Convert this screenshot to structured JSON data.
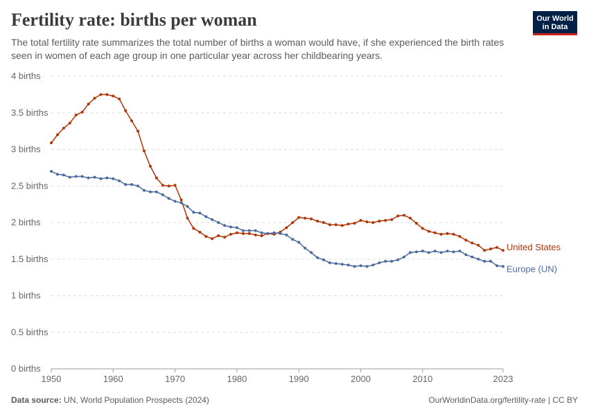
{
  "header": {
    "title": "Fertility rate: births per woman",
    "subtitle": "The total fertility rate summarizes the total number of births a woman would have, if she experienced the birth rates seen in women of each age group in one particular year across her childbearing years."
  },
  "logo": {
    "line1": "Our World",
    "line2": "in Data",
    "bg_color": "#002147",
    "accent_color": "#ce261e"
  },
  "footer": {
    "source_label": "Data source:",
    "source_text": "UN, World Population Prospects (2024)",
    "url_license": "OurWorldinData.org/fertility-rate | CC BY"
  },
  "chart_data": {
    "type": "line",
    "title": "Fertility rate: births per woman",
    "xlabel": "",
    "ylabel": "",
    "xlim": [
      1950,
      2023
    ],
    "ylim": [
      0,
      4
    ],
    "grid": "horizontal dashed",
    "x_ticks": [
      "1950",
      "1960",
      "1970",
      "1980",
      "1990",
      "2000",
      "2010",
      "2023"
    ],
    "y_ticks": [
      {
        "value": 0,
        "label": "0 births"
      },
      {
        "value": 0.5,
        "label": "0.5 births"
      },
      {
        "value": 1,
        "label": "1 births"
      },
      {
        "value": 1.5,
        "label": "1.5 births"
      },
      {
        "value": 2,
        "label": "2 births"
      },
      {
        "value": 2.5,
        "label": "2.5 births"
      },
      {
        "value": 3,
        "label": "3 births"
      },
      {
        "value": 3.5,
        "label": "3.5 births"
      },
      {
        "value": 4,
        "label": "4 births"
      }
    ],
    "x": [
      1950,
      1951,
      1952,
      1953,
      1954,
      1955,
      1956,
      1957,
      1958,
      1959,
      1960,
      1961,
      1962,
      1963,
      1964,
      1965,
      1966,
      1967,
      1968,
      1969,
      1970,
      1971,
      1972,
      1973,
      1974,
      1975,
      1976,
      1977,
      1978,
      1979,
      1980,
      1981,
      1982,
      1983,
      1984,
      1985,
      1986,
      1987,
      1988,
      1989,
      1990,
      1991,
      1992,
      1993,
      1994,
      1995,
      1996,
      1997,
      1998,
      1999,
      2000,
      2001,
      2002,
      2003,
      2004,
      2005,
      2006,
      2007,
      2008,
      2009,
      2010,
      2011,
      2012,
      2013,
      2014,
      2015,
      2016,
      2017,
      2018,
      2019,
      2020,
      2021,
      2022,
      2023
    ],
    "series": [
      {
        "name": "United States",
        "color": "#b13507",
        "values": [
          3.09,
          3.2,
          3.29,
          3.36,
          3.47,
          3.51,
          3.62,
          3.7,
          3.75,
          3.75,
          3.73,
          3.69,
          3.53,
          3.39,
          3.25,
          2.98,
          2.77,
          2.61,
          2.51,
          2.5,
          2.51,
          2.31,
          2.06,
          1.92,
          1.87,
          1.81,
          1.78,
          1.82,
          1.8,
          1.84,
          1.86,
          1.85,
          1.85,
          1.83,
          1.82,
          1.85,
          1.84,
          1.87,
          1.93,
          2.0,
          2.07,
          2.06,
          2.05,
          2.02,
          2.0,
          1.97,
          1.97,
          1.96,
          1.98,
          1.99,
          2.03,
          2.01,
          2.0,
          2.02,
          2.03,
          2.04,
          2.09,
          2.1,
          2.06,
          1.99,
          1.92,
          1.88,
          1.86,
          1.84,
          1.85,
          1.84,
          1.81,
          1.76,
          1.72,
          1.69,
          1.62,
          1.64,
          1.66,
          1.62
        ]
      },
      {
        "name": "Europe (UN)",
        "color": "#4c6a9c",
        "values": [
          2.7,
          2.66,
          2.65,
          2.62,
          2.63,
          2.63,
          2.61,
          2.62,
          2.6,
          2.61,
          2.6,
          2.57,
          2.52,
          2.52,
          2.5,
          2.44,
          2.42,
          2.42,
          2.38,
          2.33,
          2.29,
          2.27,
          2.22,
          2.14,
          2.13,
          2.08,
          2.04,
          2.0,
          1.96,
          1.94,
          1.93,
          1.89,
          1.89,
          1.89,
          1.86,
          1.85,
          1.86,
          1.85,
          1.83,
          1.77,
          1.73,
          1.65,
          1.59,
          1.52,
          1.49,
          1.45,
          1.44,
          1.43,
          1.42,
          1.4,
          1.41,
          1.4,
          1.42,
          1.45,
          1.47,
          1.47,
          1.49,
          1.53,
          1.59,
          1.6,
          1.61,
          1.59,
          1.61,
          1.59,
          1.61,
          1.6,
          1.61,
          1.56,
          1.53,
          1.5,
          1.47,
          1.47,
          1.41,
          1.4
        ]
      }
    ]
  }
}
